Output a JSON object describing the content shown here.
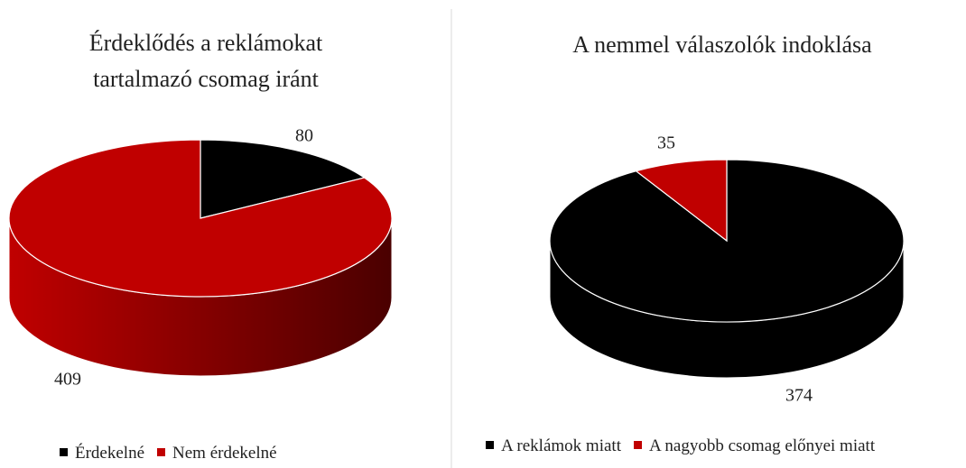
{
  "chart_data": [
    {
      "type": "pie",
      "title": "Érdeklődés a reklámokat tartalmazó csomag iránt",
      "categories": [
        "Érdekelné",
        "Nem érdekelné"
      ],
      "values": [
        80,
        409
      ],
      "colors": [
        "#000000",
        "#c00000"
      ]
    },
    {
      "type": "pie",
      "title": "A nemmel válaszolók indoklása",
      "categories": [
        "A reklámok miatt",
        "A nagyobb csomag előnyei miatt"
      ],
      "values": [
        374,
        35
      ],
      "colors": [
        "#000000",
        "#c00000"
      ]
    }
  ]
}
